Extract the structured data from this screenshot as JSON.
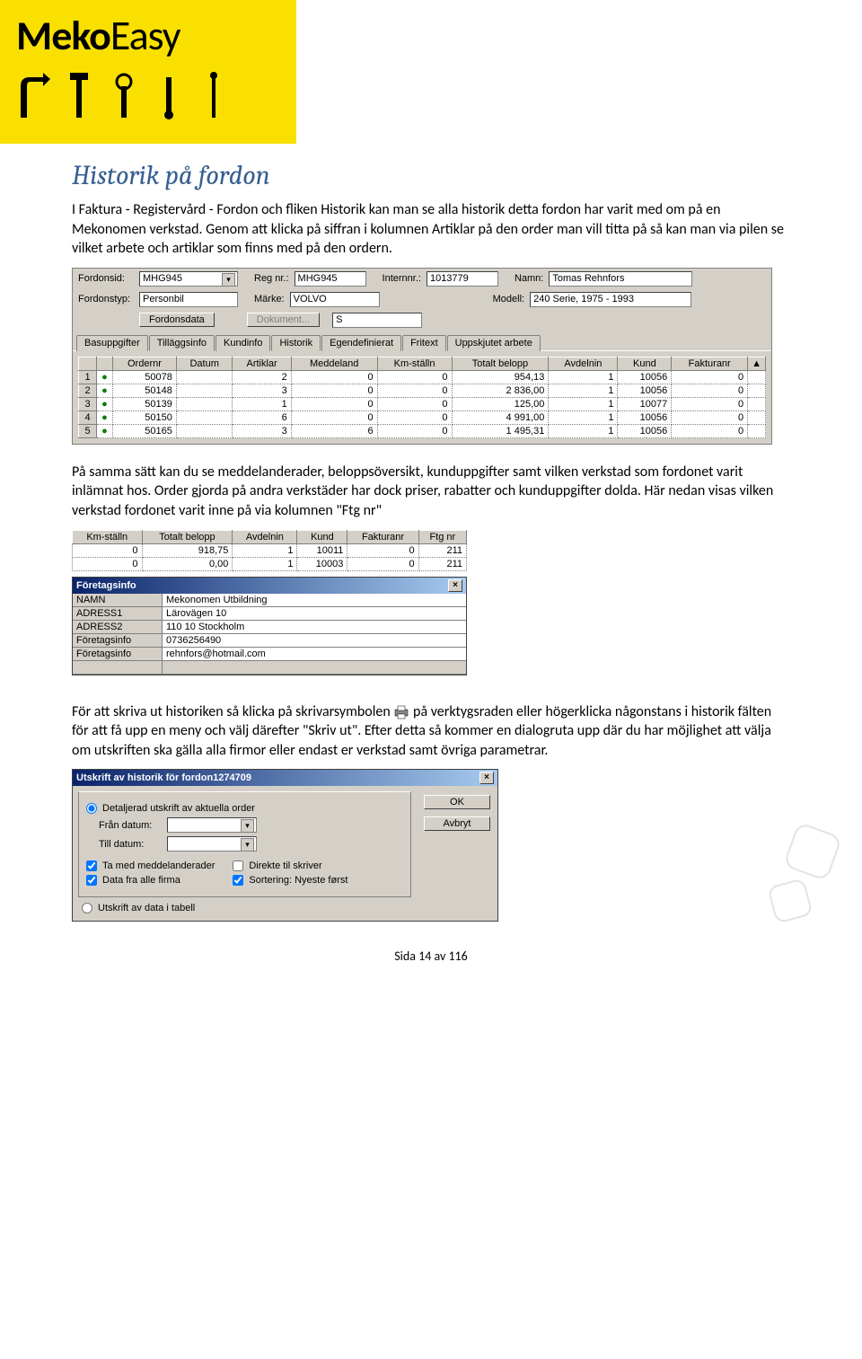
{
  "logo": {
    "bold": "Meko",
    "light": "Easy"
  },
  "heading": "Historik på fordon",
  "para1": "I Faktura - Registervård - Fordon och fliken Historik kan man se alla historik detta fordon har varit med om på en Mekonomen verkstad. Genom att klicka på siffran i kolumnen Artiklar på den order man vill titta på så kan man via pilen se vilket arbete och artiklar som finns med på den ordern.",
  "form": {
    "fordonsid_lbl": "Fordonsid:",
    "fordonsid": "MHG945",
    "regnr_lbl": "Reg nr.:",
    "regnr": "MHG945",
    "internnr_lbl": "Internnr.:",
    "internnr": "1013779",
    "namn_lbl": "Namn:",
    "namn": "Tomas Rehnfors",
    "fordonstyp_lbl": "Fordonstyp:",
    "fordonstyp": "Personbil",
    "marke_lbl": "Märke:",
    "marke": "VOLVO",
    "modell_lbl": "Modell:",
    "modell": "240 Serie, 1975 - 1993",
    "btn_fordonsdata": "Fordonsdata",
    "btn_dokument": "Dokument...",
    "sfield": "S"
  },
  "tabs": [
    "Basuppgifter",
    "Tilläggsinfo",
    "Kundinfo",
    "Historik",
    "Egendefinierat",
    "Fritext",
    "Uppskjutet arbete"
  ],
  "active_tab": "Historik",
  "hist": {
    "cols": [
      "",
      "",
      "Ordernr",
      "Datum",
      "Artiklar",
      "Meddeland",
      "Km-ställn",
      "Totalt belopp",
      "Avdelnin",
      "Kund",
      "Fakturanr",
      ""
    ],
    "rows": [
      [
        "1",
        "●",
        "50078",
        "",
        "2",
        "0",
        "0",
        "954,13",
        "1",
        "10056",
        "0",
        ""
      ],
      [
        "2",
        "●",
        "50148",
        "",
        "3",
        "0",
        "0",
        "2 836,00",
        "1",
        "10056",
        "0",
        ""
      ],
      [
        "3",
        "●",
        "50139",
        "",
        "1",
        "0",
        "0",
        "125,00",
        "1",
        "10077",
        "0",
        ""
      ],
      [
        "4",
        "●",
        "50150",
        "",
        "6",
        "0",
        "0",
        "4 991,00",
        "1",
        "10056",
        "0",
        ""
      ],
      [
        "5",
        "●",
        "50165",
        "",
        "3",
        "6",
        "0",
        "1 495,31",
        "1",
        "10056",
        "0",
        ""
      ]
    ]
  },
  "para2": "På samma sätt kan du se meddelanderader, beloppsöversikt, kunduppgifter samt vilken verkstad som fordonet varit inlämnat hos. Order gjorda på andra verkstäder har dock priser, rabatter och kunduppgifter dolda. Här nedan visas vilken verkstad fordonet varit inne på via kolumnen \"Ftg nr\"",
  "mini": {
    "cols": [
      "Km-ställn",
      "Totalt belopp",
      "Avdelnin",
      "Kund",
      "Fakturanr",
      "Ftg nr"
    ],
    "rows": [
      [
        "0",
        "918,75",
        "1",
        "10011",
        "0",
        "211"
      ],
      [
        "0",
        "0,00",
        "1",
        "10003",
        "0",
        "211"
      ]
    ]
  },
  "company": {
    "title": "Företagsinfo",
    "rows": [
      [
        "NAMN",
        "Mekonomen Utbildning"
      ],
      [
        "ADRESS1",
        "Lärovägen 10"
      ],
      [
        "ADRESS2",
        "110 10 Stockholm"
      ],
      [
        "Företagsinfo",
        "0736256490"
      ],
      [
        "Företagsinfo",
        "rehnfors@hotmail.com"
      ]
    ]
  },
  "para3a": "För att skriva ut historiken så klicka på skrivarsymbolen ",
  "para3b": " på verktygsraden eller högerklicka någonstans i historik fälten för att få upp en meny och välj därefter \"Skriv ut\". Efter detta så kommer en dialogruta upp där du har möjlighet att välja om utskriften ska gälla alla firmor eller endast er verkstad samt övriga parametrar.",
  "printdlg": {
    "title": "Utskrift av historik för fordon1274709",
    "opt_detail": "Detaljerad utskrift av aktuella order",
    "from_lbl": "Från datum:",
    "to_lbl": "Till datum:",
    "chk_medd": "Ta med meddelanderader",
    "chk_direkte": "Direkte til skriver",
    "chk_alle": "Data fra alle firma",
    "chk_sort": "Sortering: Nyeste først",
    "opt_table": "Utskrift av data i tabell",
    "ok": "OK",
    "cancel": "Avbryt"
  },
  "footer": "Sida 14 av 116",
  "colors": {
    "accent_yellow": "#f9e000",
    "heading": "#365f91",
    "titlebar_a": "#0a246a",
    "titlebar_b": "#a6caf0"
  }
}
